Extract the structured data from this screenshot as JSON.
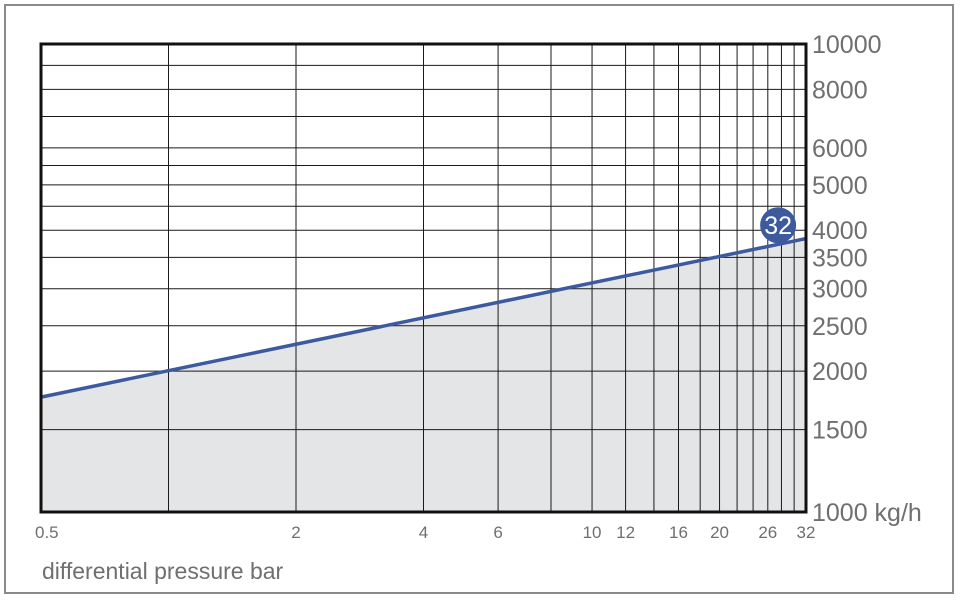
{
  "chart_data": {
    "type": "line",
    "xlabel": "differential pressure bar",
    "ylabel": "",
    "x_scale": "log",
    "y_scale": "log",
    "xlim": [
      0.5,
      32
    ],
    "ylim": [
      1000,
      10000
    ],
    "x_ticks": [
      "0.5",
      "2",
      "4",
      "6",
      "10",
      "12",
      "16",
      "20",
      "26",
      "32"
    ],
    "x_tick_values": [
      0.5,
      2,
      4,
      6,
      10,
      12,
      16,
      20,
      26,
      32
    ],
    "y_ticks": [
      "10000",
      "8000",
      "6000",
      "5000",
      "4000",
      "3500",
      "3000",
      "2500",
      "2000",
      "1500",
      "1000 kg/h"
    ],
    "y_tick_values": [
      10000,
      8000,
      6000,
      5000,
      4000,
      3500,
      3000,
      2500,
      2000,
      1500,
      1000
    ],
    "y_grid": [
      10000,
      9000,
      8000,
      7000,
      6000,
      5500,
      5000,
      4500,
      4000,
      3500,
      3000,
      2500,
      2000,
      1500,
      1000
    ],
    "x_grid": [
      0.5,
      1,
      2,
      4,
      6,
      8,
      10,
      12,
      14,
      16,
      18,
      20,
      22,
      24,
      26,
      28,
      30,
      32
    ],
    "grid": true,
    "series": [
      {
        "name": "32",
        "x": [
          0.5,
          32
        ],
        "y": [
          1760,
          3840
        ],
        "color": "#3d5a9e",
        "fill": "#e4e5e7"
      }
    ]
  }
}
